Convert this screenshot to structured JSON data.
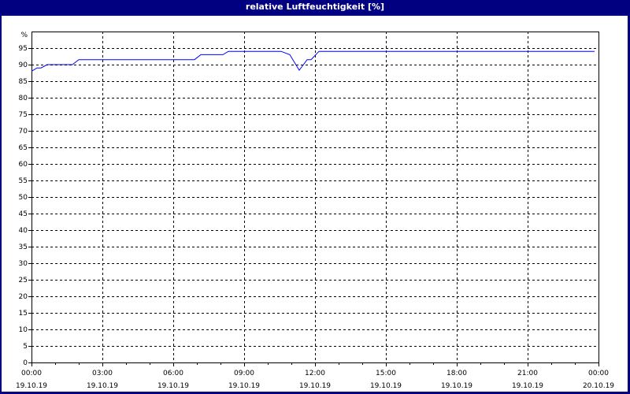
{
  "chart_data": {
    "type": "line",
    "title": "relative Luftfeuchtigkeit [%]",
    "ylabel": "%",
    "ylim": [
      0,
      100
    ],
    "yticks": [
      0,
      5,
      10,
      15,
      20,
      25,
      30,
      35,
      40,
      45,
      50,
      55,
      60,
      65,
      70,
      75,
      80,
      85,
      90,
      95
    ],
    "xlim_hours": [
      0,
      24
    ],
    "xticks": [
      {
        "time": "00:00",
        "date": "19.10.19"
      },
      {
        "time": "03:00",
        "date": "19.10.19"
      },
      {
        "time": "06:00",
        "date": "19.10.19"
      },
      {
        "time": "09:00",
        "date": "19.10.19"
      },
      {
        "time": "12:00",
        "date": "19.10.19"
      },
      {
        "time": "15:00",
        "date": "19.10.19"
      },
      {
        "time": "18:00",
        "date": "19.10.19"
      },
      {
        "time": "21:00",
        "date": "19.10.19"
      },
      {
        "time": "00:00",
        "date": "20.10.19"
      }
    ],
    "grid": true,
    "series": [
      {
        "color": "#0000ff",
        "points": [
          [
            "00:00",
            88
          ],
          [
            "00:14",
            89
          ],
          [
            "00:24",
            89
          ],
          [
            "00:40",
            90
          ],
          [
            "01:44",
            90
          ],
          [
            "02:00",
            91.5
          ],
          [
            "06:54",
            91.5
          ],
          [
            "07:10",
            93
          ],
          [
            "08:06",
            93
          ],
          [
            "08:20",
            94
          ],
          [
            "10:34",
            94
          ],
          [
            "10:56",
            93
          ],
          [
            "11:20",
            88.3
          ],
          [
            "11:40",
            91.5
          ],
          [
            "11:50",
            91.5
          ],
          [
            "12:10",
            94
          ],
          [
            "23:50",
            94
          ]
        ]
      }
    ]
  },
  "colors": {
    "frame": "#000080",
    "line": "#0000ff"
  }
}
